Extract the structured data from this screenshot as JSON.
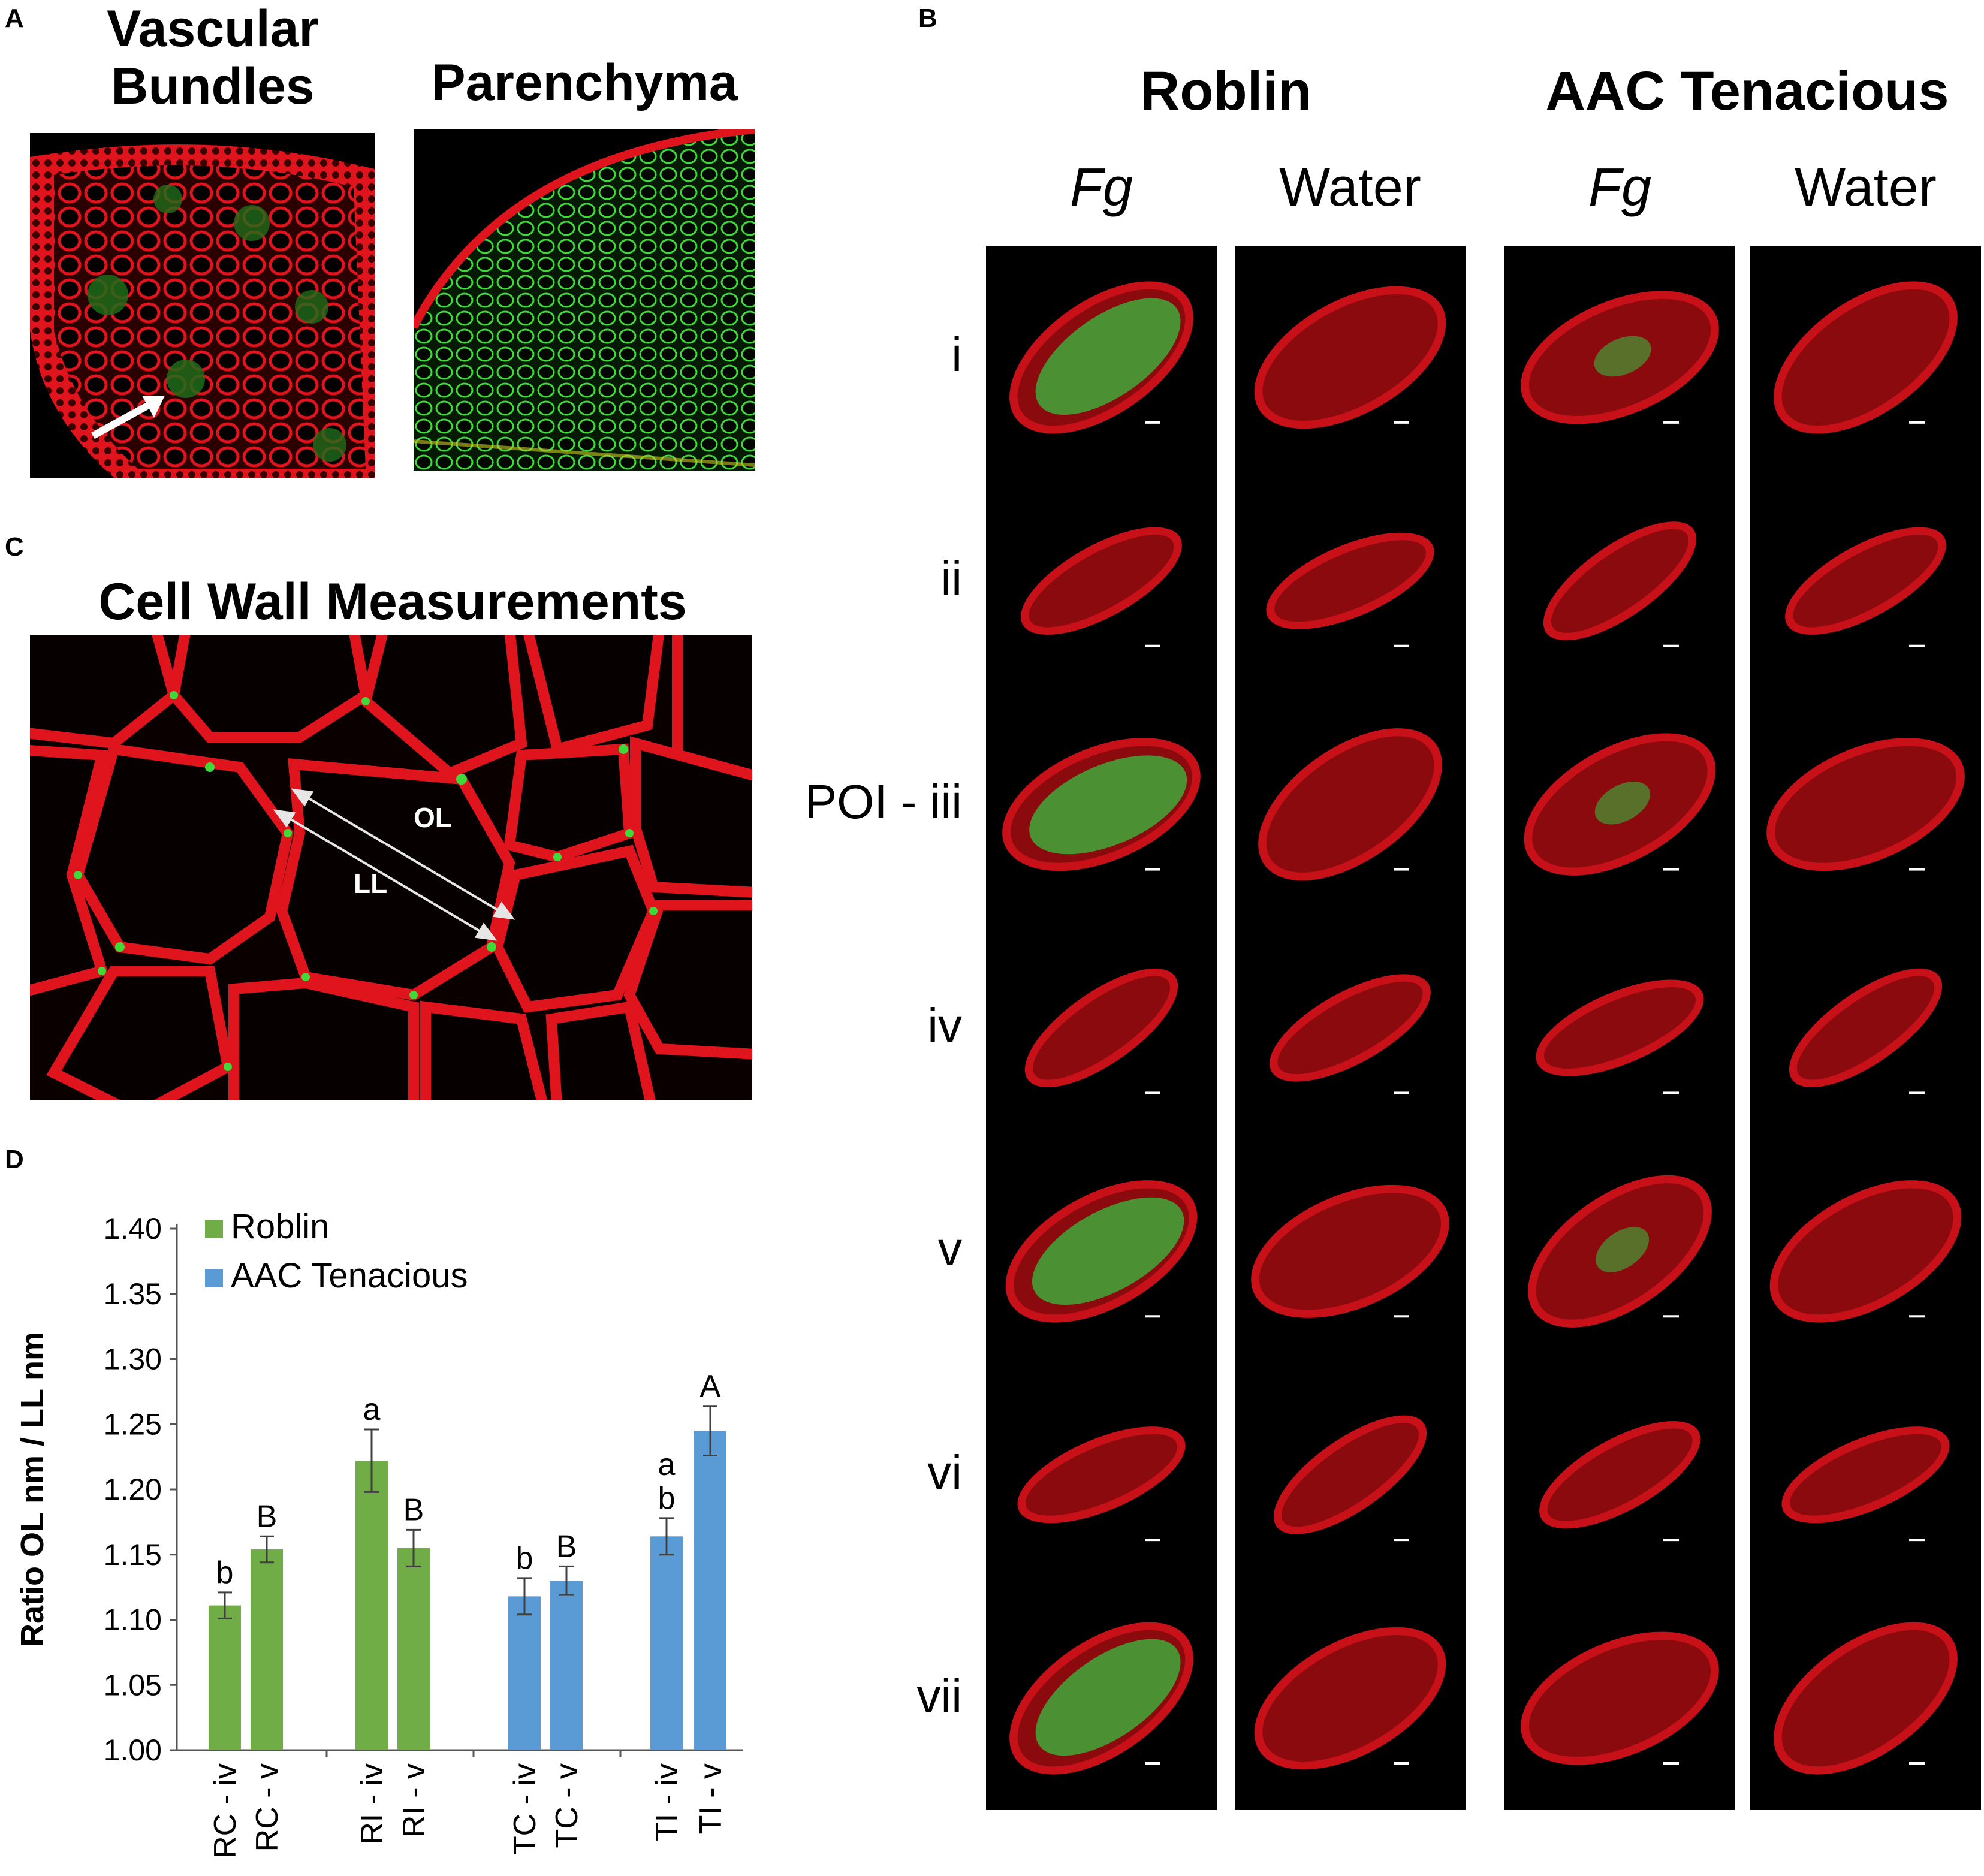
{
  "panelA": {
    "letter": "A",
    "vascular_title": "Vascular Bundles",
    "parenchyma_title": "Parenchyma"
  },
  "panelB": {
    "letter": "B",
    "groups": [
      "Roblin",
      "AAC Tenacious"
    ],
    "columns": [
      {
        "group": "Roblin",
        "treatment": "Fg",
        "italic": true
      },
      {
        "group": "Roblin",
        "treatment": "Water",
        "italic": false
      },
      {
        "group": "AAC Tenacious",
        "treatment": "Fg",
        "italic": true
      },
      {
        "group": "AAC Tenacious",
        "treatment": "Water",
        "italic": false
      }
    ],
    "rows": [
      "i",
      "ii",
      "POI - iii",
      "iv",
      "v",
      "vi",
      "vii"
    ]
  },
  "panelC": {
    "letter": "C",
    "title": "Cell Wall Measurements",
    "ol_label": "OL",
    "ll_label": "LL"
  },
  "panelD": {
    "letter": "D"
  },
  "colors": {
    "roblin": "#70AD47",
    "tenacious": "#5B9BD5",
    "tissue_red": "#e0141c",
    "signal_green": "#3fd93a"
  },
  "chart_data": {
    "type": "bar",
    "ylabel": "Ratio OL nm / LL nm",
    "ylim": [
      1.0,
      1.4
    ],
    "yticks": [
      "1.00",
      "1.05",
      "1.10",
      "1.15",
      "1.20",
      "1.25",
      "1.30",
      "1.35",
      "1.40"
    ],
    "legend": [
      "Roblin",
      "AAC Tenacious"
    ],
    "legend_position": "top-left",
    "grid": false,
    "categories": [
      "RC - iv",
      "RC - v",
      "RI - iv",
      "RI - v",
      "TC - iv",
      "TC - v",
      "TI - iv",
      "TI - v"
    ],
    "series_of_category": [
      "Roblin",
      "Roblin",
      "Roblin",
      "Roblin",
      "AAC Tenacious",
      "AAC Tenacious",
      "AAC Tenacious",
      "AAC Tenacious"
    ],
    "values": [
      1.111,
      1.154,
      1.222,
      1.155,
      1.118,
      1.13,
      1.164,
      1.245
    ],
    "errors": [
      0.01,
      0.01,
      0.024,
      0.014,
      0.014,
      0.011,
      0.014,
      0.019
    ],
    "letters": [
      "b",
      "B",
      "a",
      "B",
      "b",
      "B",
      "a\nb",
      "A"
    ]
  }
}
